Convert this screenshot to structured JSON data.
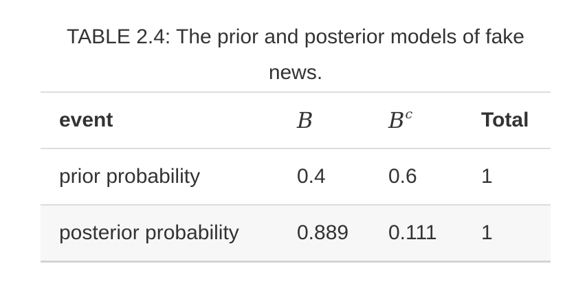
{
  "caption": "TABLE 2.4: The prior and posterior models of fake news.",
  "table": {
    "headers": {
      "event": "event",
      "b": "B",
      "bc_base": "B",
      "bc_sup": "c",
      "total": "Total"
    },
    "rows": [
      {
        "event": "prior probability",
        "b": "0.4",
        "bc": "0.6",
        "total": "1"
      },
      {
        "event": "posterior probability",
        "b": "0.889",
        "bc": "0.111",
        "total": "1"
      }
    ]
  }
}
